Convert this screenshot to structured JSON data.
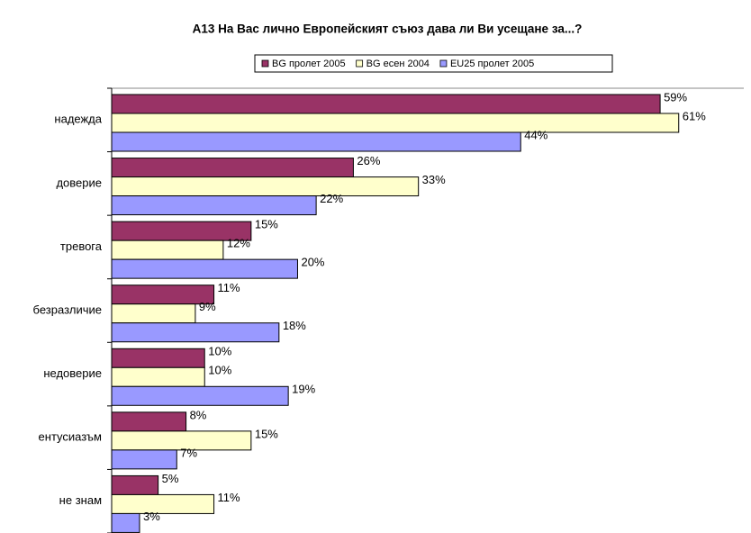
{
  "chart_data": {
    "type": "hbar",
    "title": "A13 На Вас лично Европейският съюз дава ли Ви усещане за...?",
    "categories": [
      "надежда",
      "доверие",
      "тревога",
      "безразличие",
      "недоверие",
      "ентусиазъм",
      "не знам"
    ],
    "series": [
      {
        "name": "BG пролет 2005",
        "color": "#993366",
        "values": [
          59,
          26,
          15,
          11,
          10,
          8,
          5
        ],
        "value_labels": [
          "59%",
          "26%",
          "15%",
          "11%",
          "10%",
          "8%",
          "5%"
        ]
      },
      {
        "name": "BG есен 2004",
        "color": "#ffffcc",
        "values": [
          61,
          33,
          12,
          9,
          10,
          15,
          11
        ],
        "value_labels": [
          "61%",
          "33%",
          "12%",
          "9%",
          "10%",
          "15%",
          "11%"
        ]
      },
      {
        "name": "EU25 пролет 2005",
        "color": "#9999ff",
        "values": [
          44,
          22,
          20,
          18,
          19,
          7,
          3
        ],
        "value_labels": [
          "44%",
          "22%",
          "20%",
          "18%",
          "19%",
          "7%",
          "3%"
        ]
      }
    ],
    "xlim": [
      0,
      68
    ],
    "legend": "top"
  }
}
